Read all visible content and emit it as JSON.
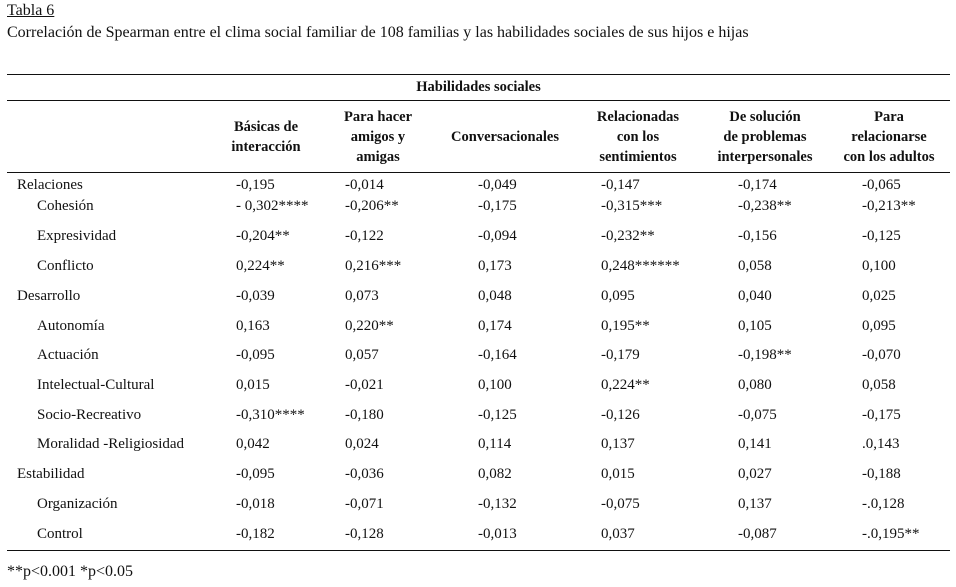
{
  "caption": {
    "label": "Tabla 6",
    "title": "Correlación de Spearman entre el clima social familiar de 108 familias y las habilidades sociales de sus hijos e hijas"
  },
  "table": {
    "group_header": "Habilidades sociales",
    "columns": [
      "Básicas de\ninteracción",
      "Para hacer\namigos y\namigas",
      "Conversacionales",
      "Relacionadas\ncon los\nsentimientos",
      "De solución\nde problemas\ninterpersonales",
      "Para\nrelacionarse\ncon los adultos"
    ],
    "rows": [
      {
        "label": "Relaciones",
        "level": 0,
        "values": [
          "-0,195",
          "-0,014",
          "-0,049",
          "-0,147",
          "-0,174",
          "-0,065"
        ]
      },
      {
        "label": "Cohesión",
        "level": 1,
        "values": [
          "- 0,302****",
          "-0,206**",
          "-0,175",
          "-0,315***",
          "-0,238**",
          "-0,213**"
        ]
      },
      {
        "label": "Expresividad",
        "level": 1,
        "values": [
          "-0,204**",
          "-0,122",
          "-0,094",
          "-0,232**",
          "-0,156",
          "-0,125"
        ]
      },
      {
        "label": "Conflicto",
        "level": 1,
        "values": [
          "0,224**",
          "0,216***",
          "0,173",
          "0,248******",
          "0,058",
          "0,100"
        ]
      },
      {
        "label": "Desarrollo",
        "level": 0,
        "values": [
          "-0,039",
          "0,073",
          "0,048",
          "0,095",
          "0,040",
          "0,025"
        ]
      },
      {
        "label": "Autonomía",
        "level": 1,
        "values": [
          "0,163",
          "0,220**",
          "0,174",
          "0,195**",
          "0,105",
          "0,095"
        ]
      },
      {
        "label": "Actuación",
        "level": 1,
        "values": [
          "-0,095",
          "0,057",
          "-0,164",
          "-0,179",
          "-0,198**",
          "-0,070"
        ]
      },
      {
        "label": "Intelectual-Cultural",
        "level": 1,
        "values": [
          "0,015",
          "-0,021",
          "0,100",
          "0,224**",
          "0,080",
          "0,058"
        ]
      },
      {
        "label": "Socio-Recreativo",
        "level": 1,
        "values": [
          "-0,310****",
          "-0,180",
          "-0,125",
          "-0,126",
          "-0,075",
          "-0,175"
        ]
      },
      {
        "label": "Moralidad -Religiosidad",
        "level": 1,
        "values": [
          "0,042",
          "0,024",
          "0,114",
          "0,137",
          "0,141",
          ".0,143"
        ]
      },
      {
        "label": "Estabilidad",
        "level": 0,
        "values": [
          "-0,095",
          "-0,036",
          "0,082",
          "0,015",
          "0,027",
          "-0,188"
        ]
      },
      {
        "label": "Organización",
        "level": 1,
        "values": [
          "-0,018",
          "-0,071",
          "-0,132",
          "-0,075",
          "0,137",
          "-.0,128"
        ]
      },
      {
        "label": "Control",
        "level": 1,
        "values": [
          "-0,182",
          "-0,128",
          "-0,013",
          "0,037",
          "-0,087",
          "-.0,195**"
        ]
      }
    ]
  },
  "footnote": "**p<0.001 *p<0.05"
}
